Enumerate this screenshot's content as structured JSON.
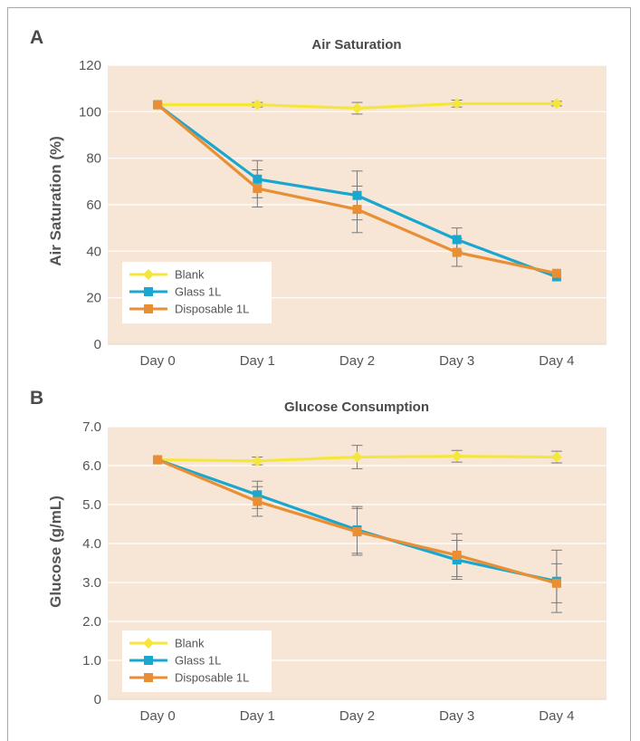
{
  "chart_data": [
    {
      "panel": "A",
      "type": "line",
      "title": "Air Saturation",
      "xlabel": "",
      "ylabel": "Air Saturation (%)",
      "categories": [
        "Day 0",
        "Day 1",
        "Day 2",
        "Day 3",
        "Day 4"
      ],
      "ylim": [
        0,
        120
      ],
      "yticks": [
        "0",
        "20",
        "40",
        "60",
        "80",
        "100",
        "120"
      ],
      "grid": true,
      "legend_position": "bottom-left",
      "series": [
        {
          "name": "Blank",
          "color": "#f5e63c",
          "marker": "diamond",
          "values": [
            103,
            103,
            101.5,
            103.5,
            103.5
          ],
          "error": [
            0,
            1,
            2.5,
            1.5,
            1
          ]
        },
        {
          "name": "Glass 1L",
          "color": "#1aa7cf",
          "marker": "square",
          "values": [
            103,
            71,
            64,
            45,
            29
          ],
          "error": [
            0,
            8,
            10.5,
            5,
            0
          ]
        },
        {
          "name": "Disposable 1L",
          "color": "#e88f36",
          "marker": "square",
          "values": [
            103,
            67,
            58,
            39.5,
            30.5
          ],
          "error": [
            0,
            8,
            10,
            6,
            0
          ]
        }
      ]
    },
    {
      "panel": "B",
      "type": "line",
      "title": "Glucose Consumption",
      "xlabel": "",
      "ylabel": "Glucose (g/mL)",
      "categories": [
        "Day 0",
        "Day 1",
        "Day 2",
        "Day 3",
        "Day 4"
      ],
      "ylim": [
        0,
        7
      ],
      "yticks": [
        "0",
        "1.0",
        "2.0",
        "3.0",
        "4.0",
        "5.0",
        "6.0",
        "7.0"
      ],
      "grid": true,
      "legend_position": "bottom-left",
      "series": [
        {
          "name": "Blank",
          "color": "#f5e63c",
          "marker": "diamond",
          "values": [
            6.15,
            6.12,
            6.22,
            6.24,
            6.22
          ],
          "error": [
            0,
            0.1,
            0.3,
            0.15,
            0.15
          ]
        },
        {
          "name": "Glass 1L",
          "color": "#1aa7cf",
          "marker": "square",
          "values": [
            6.15,
            5.25,
            4.35,
            3.58,
            3.03
          ],
          "error": [
            0,
            0.35,
            0.6,
            0.5,
            0.8
          ]
        },
        {
          "name": "Disposable 1L",
          "color": "#e88f36",
          "marker": "square",
          "values": [
            6.15,
            5.08,
            4.3,
            3.7,
            2.98
          ],
          "error": [
            0,
            0.38,
            0.6,
            0.55,
            0.5
          ]
        }
      ]
    }
  ]
}
